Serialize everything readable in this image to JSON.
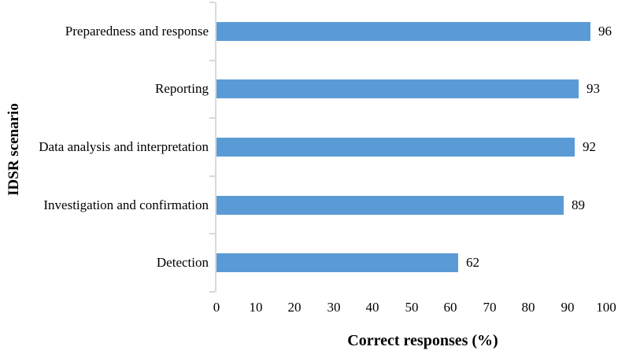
{
  "chart_data": {
    "type": "bar",
    "orientation": "horizontal",
    "title": "",
    "xlabel": "Correct responses (%)",
    "ylabel": "IDSR scenario",
    "categories": [
      "Preparedness and response",
      "Reporting",
      "Data analysis and interpretation",
      "Investigation and confirmation",
      "Detection"
    ],
    "values": [
      96,
      93,
      92,
      89,
      62
    ],
    "data_labels": [
      "96",
      "93",
      "92",
      "89",
      "62"
    ],
    "xlim": [
      0,
      100
    ],
    "xticks": [
      "0",
      "10",
      "20",
      "30",
      "40",
      "50",
      "60",
      "70",
      "80",
      "90",
      "100"
    ],
    "grid": false,
    "legend": false,
    "bar_color": "#5b9bd5",
    "axis_line_color": "#d9d9d9",
    "text_color": "#000000"
  }
}
